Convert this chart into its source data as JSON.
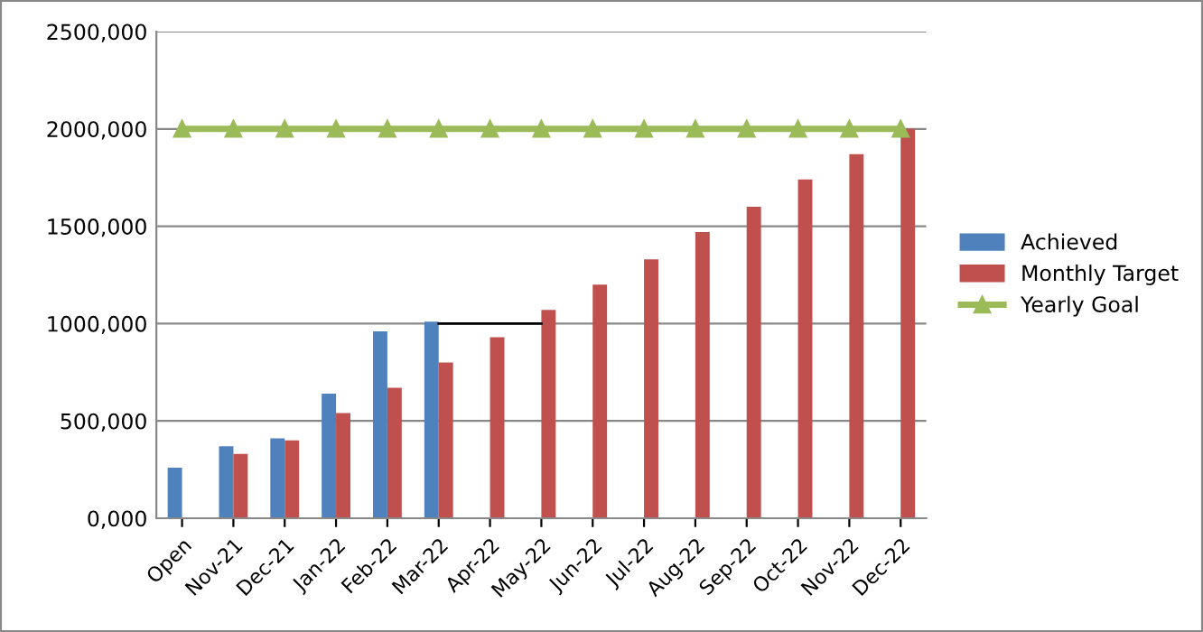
{
  "chart_data": {
    "type": "bar",
    "categories": [
      "Open",
      "Nov-21",
      "Dec-21",
      "Jan-22",
      "Feb-22",
      "Mar-22",
      "Apr-22",
      "May-22",
      "Jun-22",
      "Jul-22",
      "Aug-22",
      "Sep-22",
      "Oct-22",
      "Nov-22",
      "Dec-22"
    ],
    "series": [
      {
        "name": "Achieved",
        "color": "#4f81bd",
        "values": [
          260000,
          370000,
          410000,
          640000,
          960000,
          1010000,
          null,
          null,
          null,
          null,
          null,
          null,
          null,
          null,
          null
        ]
      },
      {
        "name": "Monthly Target",
        "color": "#c0504d",
        "values": [
          null,
          330000,
          400000,
          540000,
          670000,
          800000,
          930000,
          1070000,
          1200000,
          1330000,
          1470000,
          1600000,
          1740000,
          1870000,
          2000000
        ]
      },
      {
        "name": "Yearly Goal",
        "type": "line",
        "color": "#9bbb59",
        "marker": "triangle",
        "values": [
          2000000,
          2000000,
          2000000,
          2000000,
          2000000,
          2000000,
          2000000,
          2000000,
          2000000,
          2000000,
          2000000,
          2000000,
          2000000,
          2000000,
          2000000
        ]
      },
      {
        "type": "line",
        "color": "#000000",
        "marker": "none",
        "values": [
          null,
          null,
          null,
          null,
          null,
          1000000,
          1000000,
          1000000,
          null,
          null,
          null,
          null,
          null,
          null,
          null
        ]
      }
    ],
    "ylim": [
      0,
      2500000
    ],
    "yticks": [
      {
        "value": 0,
        "label": "0,000"
      },
      {
        "value": 500000,
        "label": "500,000"
      },
      {
        "value": 1000000,
        "label": "1000,000"
      },
      {
        "value": 1500000,
        "label": "1500,000"
      },
      {
        "value": 2000000,
        "label": "2000,000"
      },
      {
        "value": 2500000,
        "label": "2500,000"
      }
    ],
    "grid": "y",
    "legend": "right"
  }
}
